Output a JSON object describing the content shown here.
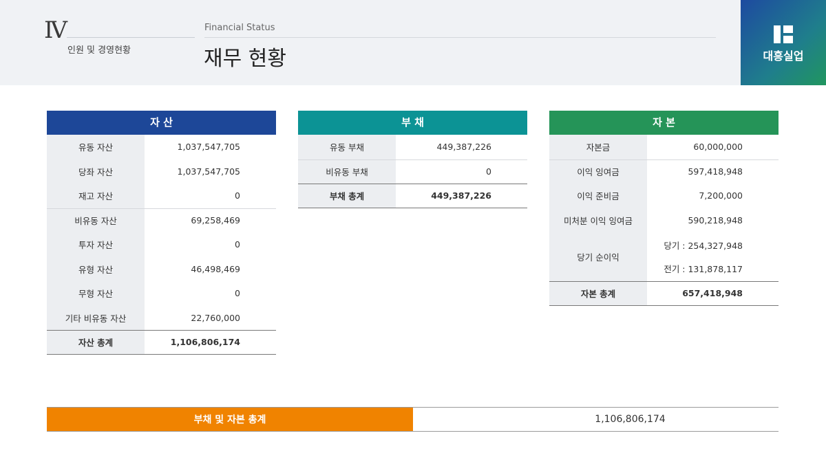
{
  "header": {
    "section_number": "Ⅳ",
    "section_title": "인원 및 경영현황",
    "english_title": "Financial Status",
    "page_title": "재무 현황"
  },
  "brand": {
    "name": "대흥실업",
    "logo_icon": "company-logo-icon"
  },
  "colors": {
    "assets": "#1d4798",
    "liabilities": "#0c9395",
    "equity": "#259458",
    "total_bar": "#f08300"
  },
  "assets": {
    "title": "자 산",
    "rows": [
      {
        "label": "유동 자산",
        "value": "1,037,547,705"
      },
      {
        "label": "당좌 자산",
        "value": "1,037,547,705"
      },
      {
        "label": "재고 자산",
        "value": "0"
      },
      {
        "label": "비유동 자산",
        "value": "69,258,469"
      },
      {
        "label": "투자 자산",
        "value": "0"
      },
      {
        "label": "유형 자산",
        "value": "46,498,469"
      },
      {
        "label": "무형 자산",
        "value": "0"
      },
      {
        "label": "기타 비유동 자산",
        "value": "22,760,000"
      }
    ],
    "total": {
      "label": "자산 총계",
      "value": "1,106,806,174"
    }
  },
  "liabilities": {
    "title": "부 채",
    "rows": [
      {
        "label": "유동 부채",
        "value": "449,387,226"
      },
      {
        "label": "비유동 부채",
        "value": "0"
      }
    ],
    "total": {
      "label": "부채 총계",
      "value": "449,387,226"
    }
  },
  "equity": {
    "title": "자 본",
    "rows": [
      {
        "label": "자본금",
        "value": "60,000,000"
      },
      {
        "label": "이익 잉여금",
        "value": "597,418,948"
      },
      {
        "label": "이익 준비금",
        "value": "7,200,000"
      },
      {
        "label": "미처분 이익 잉여금",
        "value": "590,218,948"
      }
    ],
    "net_income": {
      "label": "당기 순이익",
      "current": "당기 : 254,327,948",
      "previous": "전기 : 131,878,117"
    },
    "total": {
      "label": "자본 총계",
      "value": "657,418,948"
    }
  },
  "grand_total": {
    "label": "부채 및 자본 총계",
    "value": "1,106,806,174"
  }
}
